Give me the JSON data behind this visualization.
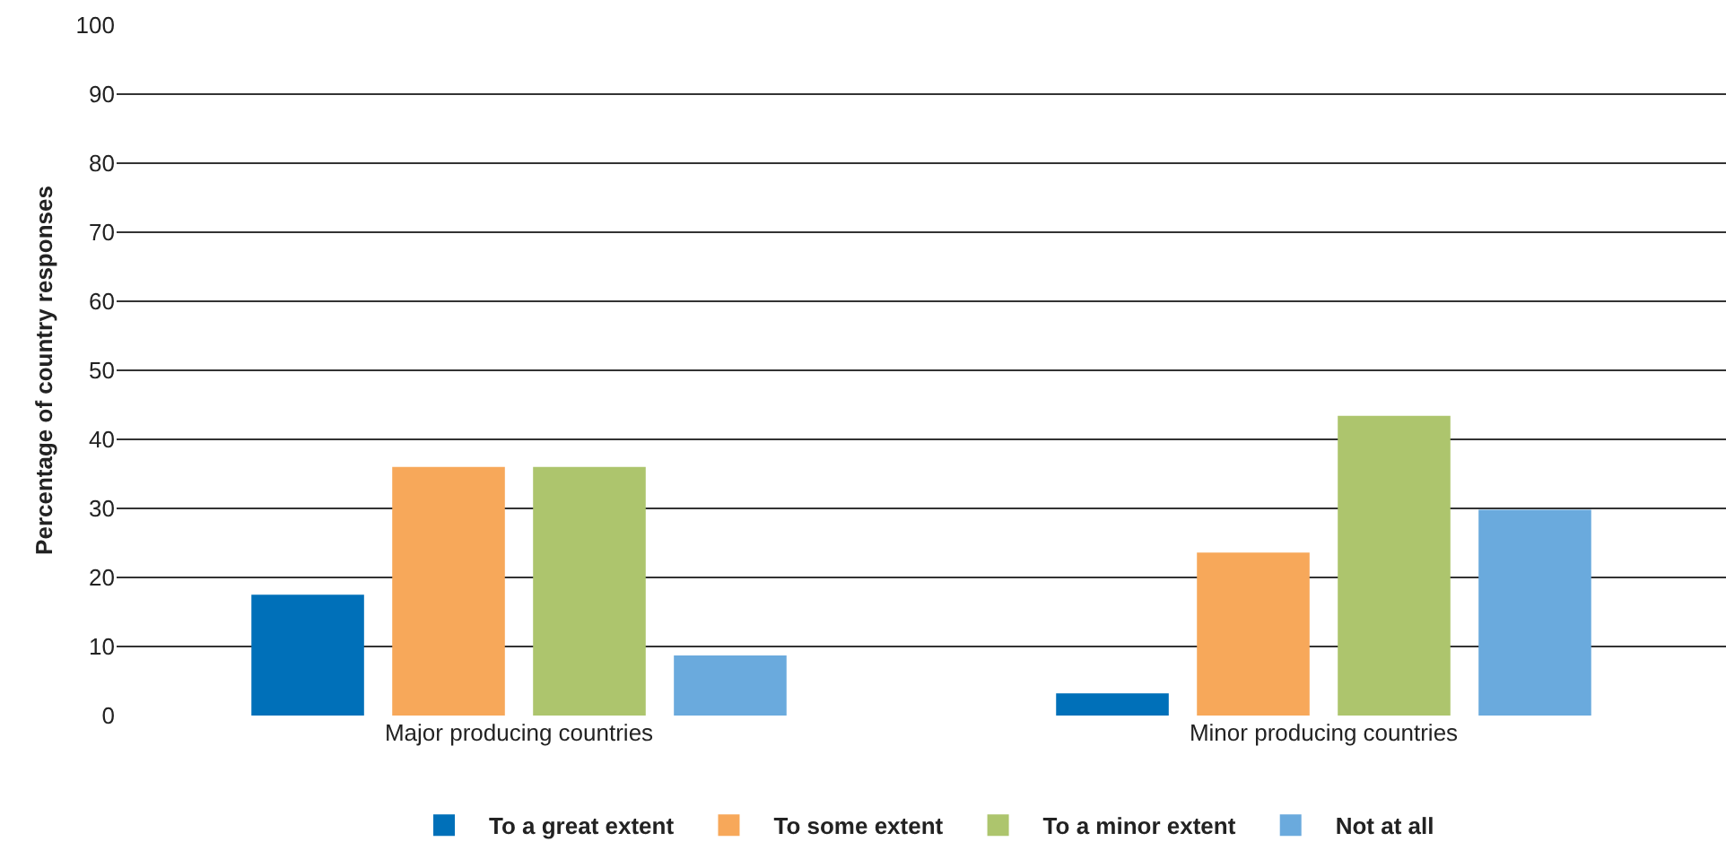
{
  "chart_data": {
    "type": "bar",
    "ylabel": "Percentage of country responses",
    "categories": [
      "Major producing countries",
      "Minor producing countries"
    ],
    "series": [
      {
        "name": "To a great extent",
        "color": "#0070b9",
        "values": [
          17.5,
          3.2
        ]
      },
      {
        "name": "To some extent",
        "color": "#f7a85a",
        "values": [
          36,
          23.6
        ]
      },
      {
        "name": "To a minor extent",
        "color": "#adc56d",
        "values": [
          36,
          43.4
        ]
      },
      {
        "name": "Not at all",
        "color": "#6aaadd",
        "values": [
          8.7,
          29.8
        ]
      }
    ],
    "ylim": [
      0,
      100
    ],
    "yticks": [
      0,
      10,
      20,
      30,
      40,
      50,
      60,
      70,
      80,
      90,
      100
    ],
    "grid": "y",
    "legend": "bottom"
  }
}
